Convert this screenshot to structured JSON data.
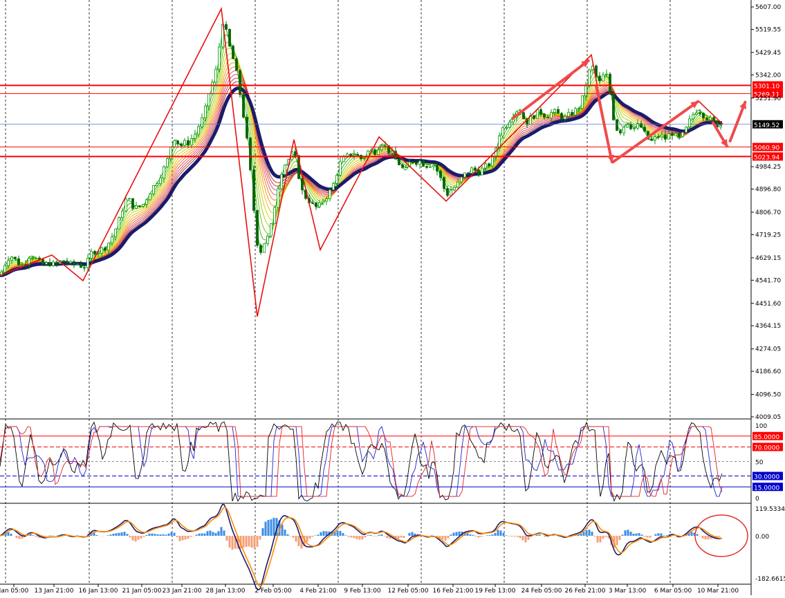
{
  "chart_data": [
    {
      "type": "candlestick",
      "panel": "price",
      "yticks": [
        "5607.00",
        "5519.55",
        "5429.45",
        "5342.00",
        "5251.90",
        "4984.25",
        "4896.80",
        "4806.70",
        "4719.25",
        "4629.15",
        "4541.70",
        "4451.60",
        "4364.15",
        "4274.05",
        "4186.60",
        "4096.50",
        "4009.05"
      ],
      "ylim": [
        4009.05,
        5607.0
      ],
      "grid": "vertical dashed",
      "current_price": "5149.52",
      "levels": [
        {
          "label": "5301.10",
          "value": 5301.1,
          "color": "#ff0000"
        },
        {
          "label": "5269.11",
          "value": 5269.11,
          "color": "#ff0000"
        },
        {
          "label": "5060.90",
          "value": 5060.9,
          "color": "#ff0000"
        },
        {
          "label": "5023.94",
          "value": 5023.94,
          "color": "#ff0000"
        }
      ],
      "close_path": [
        [
          0,
          4560
        ],
        [
          6,
          4600
        ],
        [
          12,
          4630
        ],
        [
          18,
          4635
        ],
        [
          24,
          4615
        ],
        [
          30,
          4600
        ],
        [
          36,
          4605
        ],
        [
          40,
          4635
        ],
        [
          45,
          4640
        ],
        [
          50,
          4630
        ],
        [
          55,
          4615
        ],
        [
          60,
          4605
        ],
        [
          65,
          4600
        ],
        [
          70,
          4610
        ],
        [
          75,
          4605
        ],
        [
          80,
          4600
        ],
        [
          85,
          4610
        ],
        [
          90,
          4620
        ],
        [
          95,
          4615
        ],
        [
          100,
          4605
        ],
        [
          105,
          4600
        ],
        [
          110,
          4610
        ],
        [
          115,
          4600
        ],
        [
          120,
          4595
        ],
        [
          125,
          4600
        ],
        [
          130,
          4640
        ],
        [
          135,
          4660
        ],
        [
          140,
          4650
        ],
        [
          145,
          4660
        ],
        [
          150,
          4665
        ],
        [
          155,
          4680
        ],
        [
          160,
          4700
        ],
        [
          165,
          4730
        ],
        [
          170,
          4760
        ],
        [
          175,
          4800
        ],
        [
          180,
          4850
        ],
        [
          185,
          4860
        ],
        [
          190,
          4840
        ],
        [
          195,
          4820
        ],
        [
          200,
          4830
        ],
        [
          205,
          4830
        ],
        [
          210,
          4850
        ],
        [
          215,
          4880
        ],
        [
          220,
          4900
        ],
        [
          225,
          4920
        ],
        [
          230,
          4940
        ],
        [
          235,
          4970
        ],
        [
          240,
          4990
        ],
        [
          245,
          5040
        ],
        [
          250,
          5100
        ],
        [
          255,
          5090
        ],
        [
          260,
          5060
        ],
        [
          265,
          5080
        ],
        [
          270,
          5070
        ],
        [
          275,
          5090
        ],
        [
          280,
          5100
        ],
        [
          285,
          5130
        ],
        [
          290,
          5160
        ],
        [
          295,
          5180
        ],
        [
          300,
          5250
        ],
        [
          305,
          5300
        ],
        [
          310,
          5330
        ],
        [
          315,
          5400
        ],
        [
          320,
          5530
        ],
        [
          323,
          5560
        ],
        [
          326,
          5520
        ],
        [
          330,
          5470
        ],
        [
          335,
          5420
        ],
        [
          340,
          5380
        ],
        [
          345,
          5300
        ],
        [
          350,
          5220
        ],
        [
          355,
          5130
        ],
        [
          360,
          5020
        ],
        [
          365,
          4880
        ],
        [
          370,
          4720
        ],
        [
          375,
          4640
        ],
        [
          380,
          4680
        ],
        [
          385,
          4700
        ],
        [
          390,
          4720
        ],
        [
          395,
          4800
        ],
        [
          400,
          4880
        ],
        [
          405,
          4950
        ],
        [
          410,
          4990
        ],
        [
          415,
          5000
        ],
        [
          420,
          5030
        ],
        [
          425,
          5040
        ],
        [
          430,
          4980
        ],
        [
          435,
          4900
        ],
        [
          440,
          4870
        ],
        [
          445,
          4860
        ],
        [
          450,
          4840
        ],
        [
          455,
          4830
        ],
        [
          460,
          4820
        ],
        [
          465,
          4850
        ],
        [
          470,
          4860
        ],
        [
          475,
          4880
        ],
        [
          480,
          4900
        ],
        [
          485,
          4940
        ],
        [
          490,
          4990
        ],
        [
          495,
          5010
        ],
        [
          500,
          5020
        ],
        [
          505,
          5030
        ],
        [
          510,
          5040
        ],
        [
          515,
          5030
        ],
        [
          520,
          5020
        ],
        [
          525,
          5010
        ],
        [
          530,
          5040
        ],
        [
          535,
          5050
        ],
        [
          540,
          5040
        ],
        [
          545,
          5050
        ],
        [
          550,
          5080
        ],
        [
          555,
          5070
        ],
        [
          560,
          5050
        ],
        [
          565,
          5040
        ],
        [
          570,
          5020
        ],
        [
          575,
          5000
        ],
        [
          580,
          4990
        ],
        [
          585,
          4960
        ],
        [
          590,
          4990
        ],
        [
          595,
          5010
        ],
        [
          600,
          5000
        ],
        [
          605,
          5010
        ],
        [
          610,
          5000
        ],
        [
          615,
          4990
        ],
        [
          620,
          4990
        ],
        [
          625,
          5000
        ],
        [
          630,
          4980
        ],
        [
          635,
          4950
        ],
        [
          640,
          4920
        ],
        [
          645,
          4870
        ],
        [
          650,
          4890
        ],
        [
          655,
          4900
        ],
        [
          660,
          4910
        ],
        [
          665,
          4930
        ],
        [
          670,
          4950
        ],
        [
          675,
          4960
        ],
        [
          680,
          4970
        ],
        [
          685,
          4980
        ],
        [
          690,
          4960
        ],
        [
          695,
          4970
        ],
        [
          700,
          4980
        ],
        [
          705,
          4990
        ],
        [
          710,
          5000
        ],
        [
          715,
          5030
        ],
        [
          720,
          5100
        ],
        [
          725,
          5130
        ],
        [
          730,
          5140
        ],
        [
          735,
          5160
        ],
        [
          740,
          5180
        ],
        [
          745,
          5200
        ],
        [
          750,
          5210
        ],
        [
          755,
          5190
        ],
        [
          760,
          5150
        ],
        [
          765,
          5170
        ],
        [
          770,
          5180
        ],
        [
          775,
          5190
        ],
        [
          780,
          5200
        ],
        [
          785,
          5190
        ],
        [
          790,
          5180
        ],
        [
          795,
          5190
        ],
        [
          800,
          5200
        ],
        [
          805,
          5190
        ],
        [
          810,
          5185
        ],
        [
          815,
          5170
        ],
        [
          820,
          5180
        ],
        [
          825,
          5190
        ],
        [
          830,
          5200
        ],
        [
          835,
          5210
        ],
        [
          840,
          5230
        ],
        [
          845,
          5280
        ],
        [
          850,
          5340
        ],
        [
          855,
          5380
        ],
        [
          860,
          5360
        ],
        [
          865,
          5300
        ],
        [
          870,
          5330
        ],
        [
          875,
          5350
        ],
        [
          880,
          5320
        ],
        [
          885,
          5200
        ],
        [
          890,
          5140
        ],
        [
          895,
          5120
        ],
        [
          900,
          5130
        ],
        [
          905,
          5160
        ],
        [
          910,
          5150
        ],
        [
          915,
          5130
        ],
        [
          920,
          5140
        ],
        [
          925,
          5150
        ],
        [
          930,
          5120
        ],
        [
          935,
          5100
        ],
        [
          940,
          5080
        ],
        [
          945,
          5090
        ],
        [
          950,
          5100
        ],
        [
          955,
          5110
        ],
        [
          960,
          5090
        ],
        [
          965,
          5100
        ],
        [
          970,
          5120
        ],
        [
          975,
          5110
        ],
        [
          980,
          5090
        ],
        [
          985,
          5100
        ],
        [
          990,
          5120
        ],
        [
          995,
          5150
        ],
        [
          1000,
          5180
        ],
        [
          1005,
          5200
        ],
        [
          1010,
          5210
        ],
        [
          1015,
          5190
        ],
        [
          1020,
          5180
        ],
        [
          1025,
          5170
        ],
        [
          1030,
          5160
        ],
        [
          1035,
          5150
        ],
        [
          1040,
          5145
        ],
        [
          1045,
          5150
        ]
      ],
      "zigzag": [
        [
          0,
          4560
        ],
        [
          75,
          4640
        ],
        [
          120,
          4540
        ],
        [
          320,
          5600
        ],
        [
          372,
          4400
        ],
        [
          425,
          5090
        ],
        [
          463,
          4660
        ],
        [
          548,
          5100
        ],
        [
          645,
          4850
        ],
        [
          855,
          5420
        ],
        [
          885,
          5000
        ],
        [
          1010,
          5240
        ],
        [
          1045,
          5150
        ]
      ],
      "arrows": [
        [
          [
            740,
            5170
          ],
          [
            852,
            5400
          ]
        ],
        [
          [
            862,
            5300
          ],
          [
            885,
            5000
          ]
        ],
        [
          [
            885,
            5000
          ],
          [
            1010,
            5240
          ]
        ],
        [
          [
            1030,
            5160
          ],
          [
            1052,
            5060
          ]
        ],
        [
          [
            1055,
            5080
          ],
          [
            1078,
            5240
          ]
        ]
      ]
    },
    {
      "type": "line",
      "panel": "stochastic",
      "yticks": [
        "100",
        "50",
        "0"
      ],
      "ylim": [
        0,
        100
      ],
      "levels": [
        {
          "label": "85.0000",
          "value": 85,
          "color": "#ff0000"
        },
        {
          "label": "70.0000",
          "value": 70,
          "color": "#ff0000"
        },
        {
          "label": "30.0000",
          "value": 30,
          "color": "#0000cc"
        },
        {
          "label": "15.0000",
          "value": 15,
          "color": "#0000cc"
        }
      ]
    },
    {
      "type": "bar",
      "panel": "macd",
      "yticks": [
        "119.5334",
        "0.00",
        "-182.6615"
      ],
      "ylim": [
        -182.6615,
        119.5334
      ],
      "histogram_colors": {
        "positive": "#3a8ee6",
        "negative": "#f4a07a"
      },
      "line_colors": {
        "macd": "#1a1a6e",
        "signal": "#ff8c00"
      }
    }
  ],
  "xticks": [
    "Jan 05:00",
    "13 Jan 21:00",
    "16 Jan 13:00",
    "21 Jan 05:00",
    "23 Jan 21:00",
    "28 Jan 13:00",
    "2 Feb 05:00",
    "4 Feb 21:00",
    "9 Feb 13:00",
    "12 Feb 05:00",
    "16 Feb 21:00",
    "19 Feb 13:00",
    "24 Feb 05:00",
    "26 Feb 21:00",
    "3 Mar 13:00",
    "6 Mar 05:00",
    "10 Mar 21:00"
  ],
  "colors": {
    "background": "#ffffff",
    "candle_up": "#009900",
    "candle_down": "#006600",
    "zigzag": "#e81010",
    "trend_ma": "#1b1b6b",
    "level": "#ff0000",
    "annotation_circle": "#e03030"
  }
}
